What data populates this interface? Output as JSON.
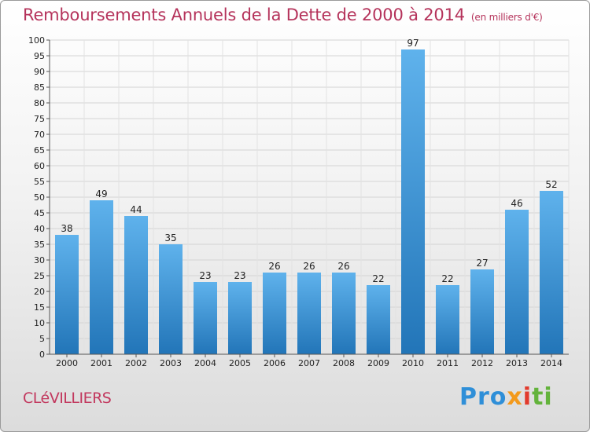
{
  "chart_data": {
    "type": "bar",
    "title": "Remboursements Annuels de la Dette de 2000 à 2014",
    "unit_note": "(en milliers d'€)",
    "categories": [
      "2000",
      "2001",
      "2002",
      "2003",
      "2004",
      "2005",
      "2006",
      "2007",
      "2008",
      "2009",
      "2010",
      "2011",
      "2012",
      "2013",
      "2014"
    ],
    "values": [
      38,
      49,
      44,
      35,
      23,
      23,
      26,
      26,
      26,
      22,
      97,
      22,
      27,
      46,
      52
    ],
    "ylim": [
      0,
      100
    ],
    "yticks": [
      0,
      5,
      10,
      15,
      20,
      25,
      30,
      35,
      40,
      45,
      50,
      55,
      60,
      65,
      70,
      75,
      80,
      85,
      90,
      95,
      100
    ],
    "grid": true,
    "bar_color": "#3d96d8"
  },
  "commune": "CLéVILLIERS",
  "logo": {
    "p1": "Pro",
    "p2": "x",
    "p3": "i",
    "p4": "ti"
  },
  "colors": {
    "title": "#b5335b",
    "bar_light": "#5fb2ec",
    "bar_dark": "#2275b8"
  }
}
